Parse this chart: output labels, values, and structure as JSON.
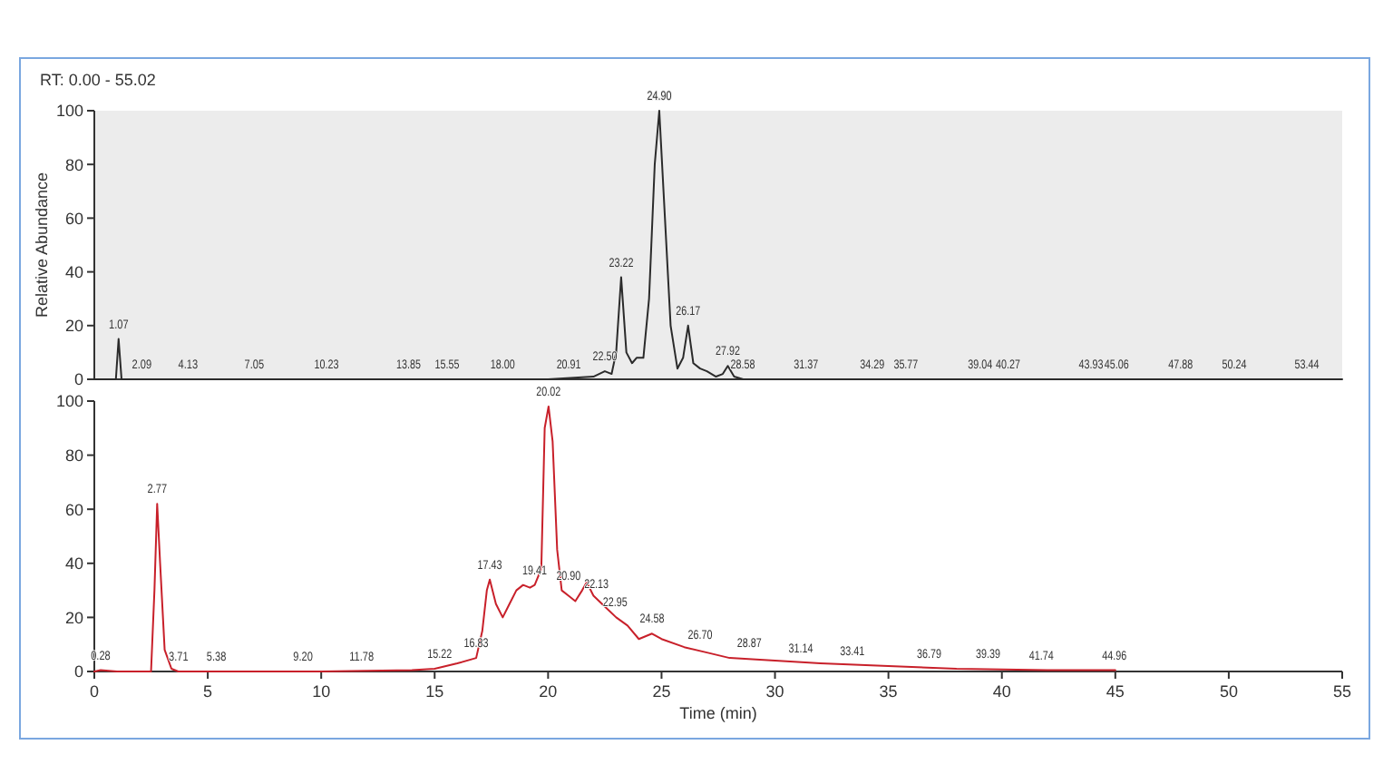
{
  "chart_data": [
    {
      "type": "line",
      "title": "RT: 0.00 - 55.02",
      "ylabel": "Relative Abundance",
      "xlim": [
        0,
        55
      ],
      "ylim": [
        0,
        100
      ],
      "yticks": [
        0,
        20,
        40,
        60,
        80,
        100
      ],
      "tick_labels": "y",
      "grid": false,
      "marker": "none",
      "series": [
        {
          "color": "#2b2b2b",
          "x": [
            0,
            0.95,
            1.07,
            1.2,
            2,
            10,
            18,
            20,
            21,
            22,
            22.5,
            22.8,
            23.0,
            23.22,
            23.45,
            23.7,
            23.9,
            24.2,
            24.45,
            24.7,
            24.9,
            25.15,
            25.4,
            25.7,
            25.95,
            26.17,
            26.4,
            26.7,
            27.0,
            27.4,
            27.7,
            27.92,
            28.2,
            28.6,
            30,
            40,
            50,
            55
          ],
          "values": [
            0,
            0,
            15,
            0,
            0,
            0,
            0,
            0,
            0.5,
            1,
            3,
            2,
            10,
            38,
            10,
            6,
            8,
            8,
            30,
            80,
            100,
            60,
            20,
            4,
            8,
            20,
            6,
            4,
            3,
            1,
            2,
            5,
            1,
            0,
            0,
            0,
            0,
            0
          ]
        }
      ],
      "annotations": [
        {
          "text": "1.07",
          "x": 1.07,
          "y": 15
        },
        {
          "text": "2.09",
          "x": 2.09,
          "y": 0
        },
        {
          "text": "4.13",
          "x": 4.13,
          "y": 0
        },
        {
          "text": "7.05",
          "x": 7.05,
          "y": 0
        },
        {
          "text": "10.23",
          "x": 10.23,
          "y": 0
        },
        {
          "text": "13.85",
          "x": 13.85,
          "y": 0
        },
        {
          "text": "15.55",
          "x": 15.55,
          "y": 0
        },
        {
          "text": "18.00",
          "x": 18.0,
          "y": 0
        },
        {
          "text": "20.91",
          "x": 20.91,
          "y": 0
        },
        {
          "text": "22.50",
          "x": 22.5,
          "y": 3
        },
        {
          "text": "23.22",
          "x": 23.22,
          "y": 38
        },
        {
          "text": "24.90",
          "x": 24.9,
          "y": 100
        },
        {
          "text": "26.17",
          "x": 26.17,
          "y": 20
        },
        {
          "text": "27.92",
          "x": 27.92,
          "y": 5
        },
        {
          "text": "28.58",
          "x": 28.58,
          "y": 0
        },
        {
          "text": "31.37",
          "x": 31.37,
          "y": 0
        },
        {
          "text": "34.29",
          "x": 34.29,
          "y": 0
        },
        {
          "text": "35.77",
          "x": 35.77,
          "y": 0
        },
        {
          "text": "39.04",
          "x": 39.04,
          "y": 0
        },
        {
          "text": "40.27",
          "x": 40.27,
          "y": 0
        },
        {
          "text": "43.93",
          "x": 43.93,
          "y": 0
        },
        {
          "text": "45.06",
          "x": 45.06,
          "y": 0
        },
        {
          "text": "47.88",
          "x": 47.88,
          "y": 0
        },
        {
          "text": "50.24",
          "x": 50.24,
          "y": 0
        },
        {
          "text": "53.44",
          "x": 53.44,
          "y": 0
        }
      ]
    },
    {
      "type": "line",
      "xlabel": "Time (min)",
      "xlim": [
        0,
        55
      ],
      "xticks": [
        0,
        5,
        10,
        15,
        20,
        25,
        30,
        35,
        40,
        45,
        50,
        55
      ],
      "ylim": [
        0,
        100
      ],
      "yticks": [
        0,
        20,
        40,
        60,
        80,
        100
      ],
      "grid": false,
      "marker": "none",
      "series": [
        {
          "color": "#c8202a",
          "x": [
            0,
            0.28,
            1,
            2,
            2.5,
            2.65,
            2.77,
            2.9,
            3.1,
            3.4,
            3.7,
            5,
            10,
            14,
            15,
            16,
            16.83,
            17.1,
            17.3,
            17.43,
            17.7,
            18.0,
            18.3,
            18.6,
            18.9,
            19.2,
            19.41,
            19.7,
            19.85,
            20.02,
            20.2,
            20.4,
            20.6,
            20.9,
            21.2,
            21.5,
            21.7,
            22.0,
            22.5,
            23.0,
            23.5,
            24.0,
            24.58,
            25.0,
            26.0,
            27.0,
            28.0,
            30.0,
            32.0,
            35.0,
            38.0,
            42.0,
            45.0
          ],
          "values": [
            0,
            0.5,
            0,
            0,
            0,
            30,
            62,
            40,
            8,
            1,
            0,
            0,
            0,
            0.5,
            1,
            3,
            5,
            15,
            30,
            34,
            25,
            20,
            25,
            30,
            32,
            31,
            32,
            38,
            90,
            98,
            85,
            45,
            30,
            28,
            26,
            30,
            33,
            28,
            24,
            20,
            17,
            12,
            14,
            12,
            9,
            7,
            5,
            4,
            3,
            2,
            1,
            0.5,
            0.5
          ]
        }
      ],
      "annotations": [
        {
          "text": "0.28",
          "x": 0.28,
          "y": 0.5
        },
        {
          "text": "2.77",
          "x": 2.77,
          "y": 62
        },
        {
          "text": "3.71",
          "x": 3.71,
          "y": 0
        },
        {
          "text": "5.38",
          "x": 5.38,
          "y": 0
        },
        {
          "text": "9.20",
          "x": 9.2,
          "y": 0
        },
        {
          "text": "11.78",
          "x": 11.78,
          "y": 0
        },
        {
          "text": "15.22",
          "x": 15.22,
          "y": 1
        },
        {
          "text": "16.83",
          "x": 16.83,
          "y": 5
        },
        {
          "text": "17.43",
          "x": 17.43,
          "y": 34
        },
        {
          "text": "19.41",
          "x": 19.41,
          "y": 32
        },
        {
          "text": "20.02",
          "x": 20.02,
          "y": 98
        },
        {
          "text": "20.90",
          "x": 20.9,
          "y": 30
        },
        {
          "text": "22.13",
          "x": 22.13,
          "y": 27
        },
        {
          "text": "22.95",
          "x": 22.95,
          "y": 20
        },
        {
          "text": "24.58",
          "x": 24.58,
          "y": 14
        },
        {
          "text": "26.70",
          "x": 26.7,
          "y": 8
        },
        {
          "text": "28.87",
          "x": 28.87,
          "y": 5
        },
        {
          "text": "31.14",
          "x": 31.14,
          "y": 3
        },
        {
          "text": "33.41",
          "x": 33.41,
          "y": 2
        },
        {
          "text": "36.79",
          "x": 36.79,
          "y": 1
        },
        {
          "text": "39.39",
          "x": 39.39,
          "y": 1
        },
        {
          "text": "41.74",
          "x": 41.74,
          "y": 0.5
        },
        {
          "text": "44.96",
          "x": 44.96,
          "y": 0.5
        }
      ]
    }
  ]
}
